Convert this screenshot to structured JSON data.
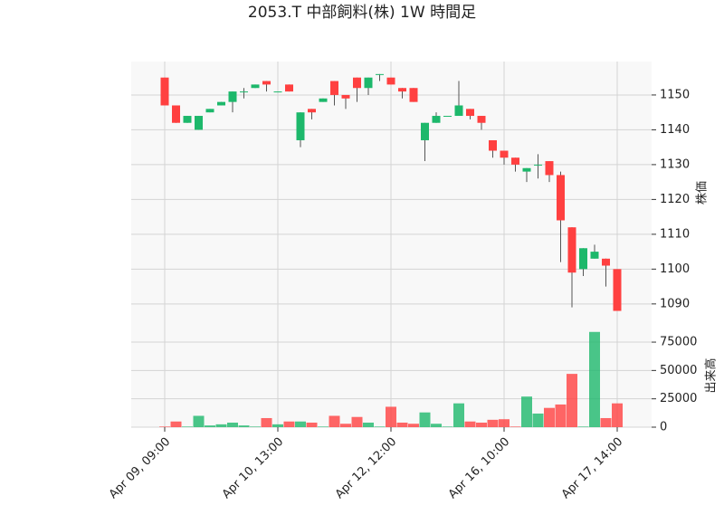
{
  "chart_data": {
    "type": "candlestick",
    "title": "2053.T 中部飼料(株) 1W 時間足",
    "categories": [
      "Apr 09, 09:00",
      null,
      null,
      null,
      null,
      null,
      null,
      null,
      null,
      null,
      "Apr 10, 13:00",
      null,
      null,
      null,
      null,
      null,
      null,
      null,
      null,
      null,
      "Apr 12, 12:00",
      null,
      null,
      null,
      null,
      null,
      null,
      null,
      null,
      null,
      "Apr 16, 10:00",
      null,
      null,
      null,
      null,
      null,
      null,
      null,
      null,
      null,
      "Apr 17, 14:00"
    ],
    "open": [
      1155,
      1147,
      1142,
      1140,
      1145,
      1147,
      1148,
      1151,
      1152,
      1154,
      1151,
      1153,
      1137,
      1146,
      1148,
      1154,
      1150,
      1155,
      1152,
      1156,
      1155,
      1152,
      1152,
      1137,
      1142,
      1144,
      1144,
      1146,
      1144,
      1137,
      1134,
      1132,
      1128,
      1130,
      1131,
      1127,
      1112,
      1100,
      1103,
      1103,
      1100
    ],
    "high": [
      1155,
      1147,
      1144,
      1144,
      1146,
      1148,
      1151,
      1152,
      1153,
      1154,
      1151,
      1153,
      1145,
      1146,
      1149,
      1154,
      1150,
      1155,
      1155,
      1156,
      1155,
      1152,
      1152,
      1142,
      1145,
      1144,
      1154,
      1146,
      1144,
      1137,
      1134,
      1132,
      1129,
      1133,
      1131,
      1128,
      1112,
      1106,
      1107,
      1103,
      1100
    ],
    "low": [
      1147,
      1142,
      1142,
      1140,
      1145,
      1147,
      1145,
      1149,
      1152,
      1151,
      1151,
      1151,
      1135,
      1143,
      1148,
      1147,
      1146,
      1148,
      1150,
      1154,
      1153,
      1149,
      1148,
      1131,
      1142,
      1144,
      1144,
      1143,
      1140,
      1132,
      1130,
      1128,
      1125,
      1126,
      1125,
      1102,
      1089,
      1098,
      1103,
      1095,
      1088
    ],
    "close": [
      1147,
      1142,
      1144,
      1144,
      1146,
      1148,
      1151,
      1151,
      1153,
      1153,
      1151,
      1151,
      1145,
      1145,
      1149,
      1150,
      1149,
      1152,
      1155,
      1156,
      1153,
      1151,
      1148,
      1142,
      1144,
      1144,
      1147,
      1144,
      1142,
      1134,
      1132,
      1130,
      1129,
      1130,
      1127,
      1114,
      1099,
      1106,
      1105,
      1101,
      1088
    ],
    "volume": [
      500,
      5000,
      500,
      10000,
      1500,
      2500,
      4000,
      1500,
      500,
      8000,
      2500,
      5000,
      5000,
      4000,
      500,
      10000,
      3000,
      9000,
      4000,
      500,
      18000,
      4000,
      3000,
      13000,
      3000,
      500,
      21000,
      5000,
      4000,
      6500,
      7000,
      500,
      27000,
      12000,
      17000,
      20000,
      47000,
      500,
      84000,
      8000,
      21000
    ],
    "up_color": "#1db86b",
    "down_color": "#ff4040",
    "ylabel": "株価",
    "y2label": "出来高",
    "ylim": [
      1084.5,
      1159.6
    ],
    "yticks": [
      1090,
      1100,
      1110,
      1120,
      1130,
      1140,
      1150
    ],
    "y2lim": [
      0,
      91800
    ],
    "y2ticks": [
      0,
      25000,
      50000,
      75000
    ],
    "grid": true
  }
}
